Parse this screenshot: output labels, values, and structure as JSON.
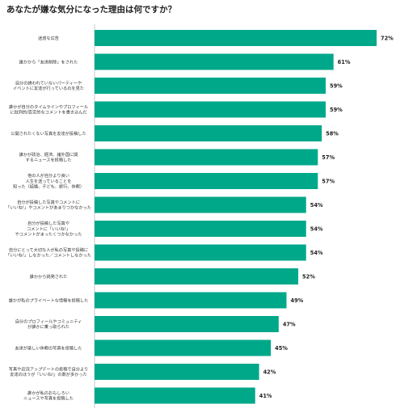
{
  "chart_data": {
    "type": "bar",
    "orientation": "horizontal",
    "title": "あなたが嫌な気分になった理由は何ですか？",
    "value_suffix": "%",
    "color": "#00a88a",
    "xlim": [
      0,
      75
    ],
    "categories": [
      [
        "迷惑な広告"
      ],
      [
        "誰かから「友達削除」をされた"
      ],
      [
        "自分の誘われていないパーティーや",
        "イベントに友達が行っているのを見た"
      ],
      [
        "誰かが自分のタイムラインやプロフィール",
        "に批判的/否定的なコメントを書き込んだ"
      ],
      [
        "公開されたくない写真を友達が投稿した"
      ],
      [
        "誰かが政治、経済、諸外国に関",
        "するニュースを投稿した"
      ],
      [
        "他の人が自分より良い",
        "人生を送っていることを",
        "知った（結婚、子ども、旅行、休暇）"
      ],
      [
        "自分が投稿した写真やコメントに",
        "「いいね!」やコメントがあまりつかなかった"
      ],
      [
        "自分が投稿した写真や",
        "コメントに「いいね!」",
        "やコメントがまったくつかなかった"
      ],
      [
        "自分にとって大切な人が私の写真や投稿に",
        "「いいね!」しなかった／コメントしなかった"
      ],
      [
        "誰かから挑発された"
      ],
      [
        "誰かが私のプライベートな情報を投稿した"
      ],
      [
        "自分のプロフィールやコミュニティ",
        "が誰かに乗っ取られた"
      ],
      [
        "友達が楽しい休暇の写真を投稿した"
      ],
      [
        "写真や近況アップデートの投稿で自分より",
        "友達のほうが「いいね!」の数が多かった"
      ],
      [
        "誰かが私のおもしろい",
        "ニュースや写真を投稿した"
      ]
    ],
    "values": [
      72,
      61,
      59,
      59,
      58,
      57,
      57,
      54,
      54,
      54,
      52,
      49,
      47,
      45,
      42,
      41
    ]
  }
}
